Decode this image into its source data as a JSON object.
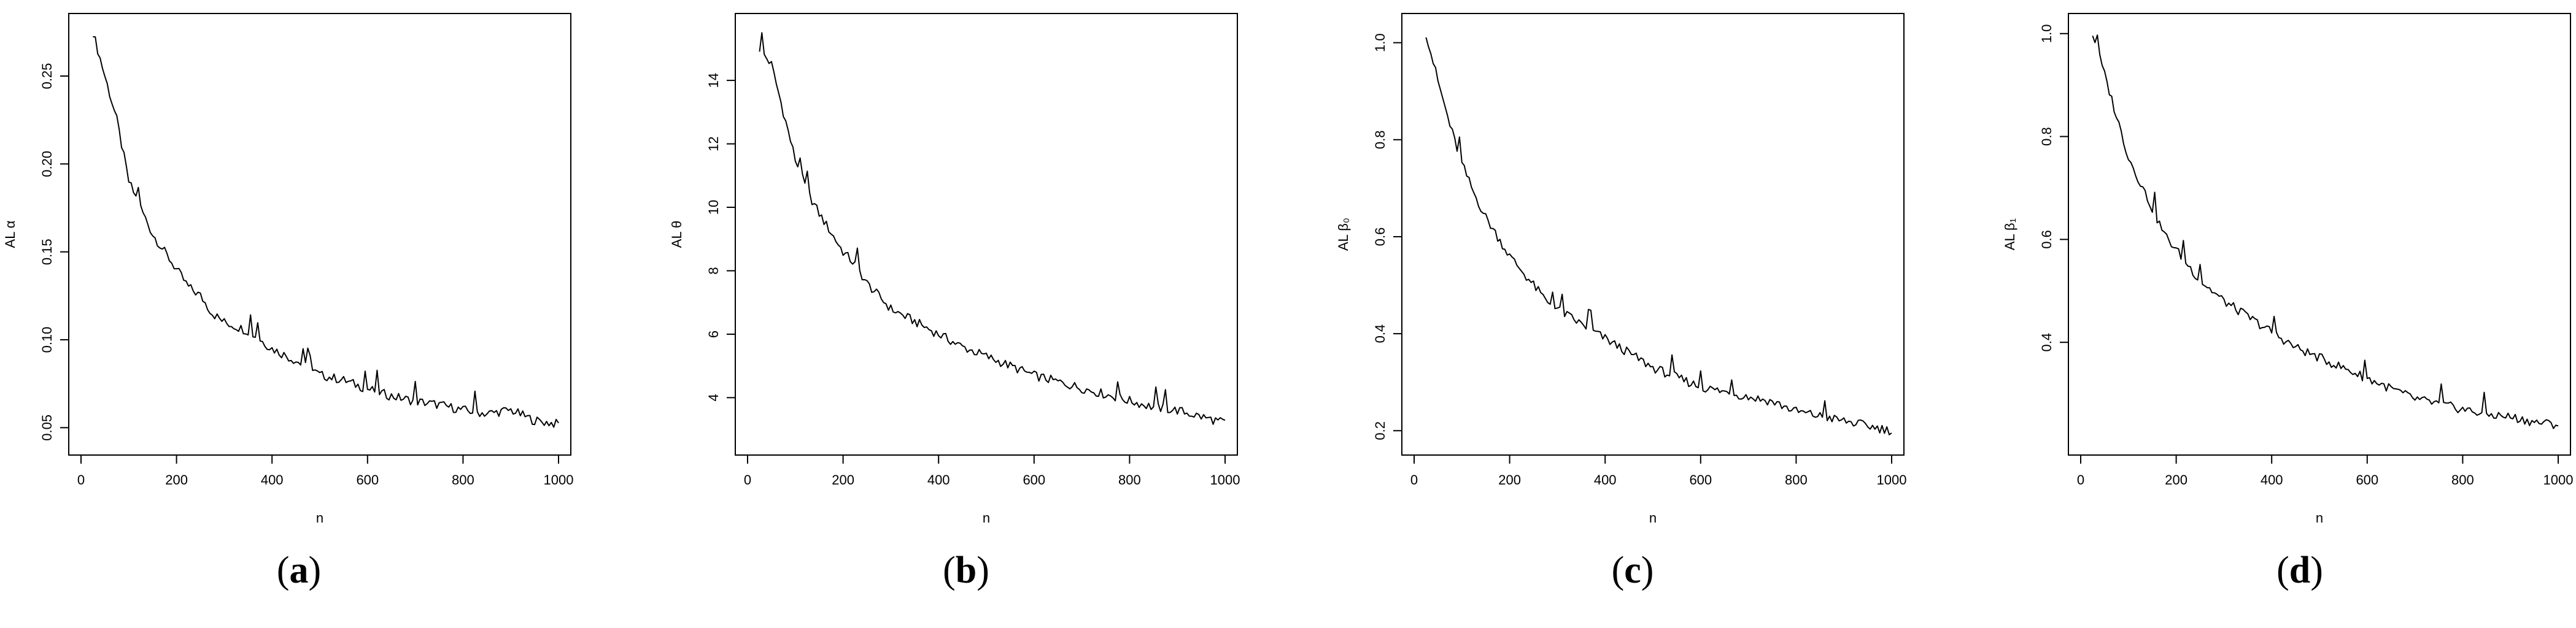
{
  "panels": [
    {
      "caption": "(a)",
      "caption_letter": "a"
    },
    {
      "caption": "(b)",
      "caption_letter": "b"
    },
    {
      "caption": "(c)",
      "caption_letter": "c"
    },
    {
      "caption": "(d)",
      "caption_letter": "d"
    }
  ],
  "chart_data": [
    {
      "type": "line",
      "title": "",
      "xlabel": "n",
      "ylabel": "AL α",
      "xlim": [
        0,
        1000
      ],
      "ylim": [
        0.04,
        0.28
      ],
      "xticks": [
        0,
        200,
        400,
        600,
        800,
        1000
      ],
      "yticks": [
        0.05,
        0.1,
        0.15,
        0.2,
        0.25
      ],
      "ytick_labels": [
        "0.05",
        "0.10",
        "0.15",
        "0.20",
        "0.25"
      ],
      "grid": false,
      "series": [
        {
          "x": [
            25,
            50,
            75,
            100,
            125,
            150,
            175,
            200,
            225,
            250,
            275,
            300,
            350,
            400,
            450,
            500,
            550,
            600,
            650,
            700,
            750,
            800,
            850,
            900,
            950,
            1000
          ],
          "y": [
            0.275,
            0.25,
            0.225,
            0.19,
            0.175,
            0.16,
            0.15,
            0.14,
            0.13,
            0.125,
            0.115,
            0.11,
            0.105,
            0.095,
            0.088,
            0.08,
            0.077,
            0.072,
            0.068,
            0.065,
            0.063,
            0.06,
            0.058,
            0.06,
            0.054,
            0.052
          ]
        }
      ]
    },
    {
      "type": "line",
      "title": "",
      "xlabel": "n",
      "ylabel": "AL θ",
      "xlim": [
        0,
        1000
      ],
      "ylim": [
        2.5,
        15.8
      ],
      "xticks": [
        0,
        200,
        400,
        600,
        800,
        1000
      ],
      "yticks": [
        4,
        6,
        8,
        10,
        12,
        14
      ],
      "ytick_labels": [
        "4",
        "6",
        "8",
        "10",
        "12",
        "14"
      ],
      "grid": false,
      "series": [
        {
          "x": [
            25,
            50,
            75,
            100,
            125,
            150,
            175,
            200,
            225,
            250,
            275,
            300,
            350,
            400,
            450,
            500,
            550,
            600,
            650,
            700,
            750,
            800,
            850,
            900,
            950,
            1000
          ],
          "y": [
            15.0,
            14.5,
            13.0,
            11.5,
            10.5,
            9.8,
            9.2,
            8.6,
            8.2,
            7.6,
            7.2,
            6.8,
            6.4,
            6.0,
            5.6,
            5.3,
            5.0,
            4.7,
            4.5,
            4.3,
            4.1,
            3.9,
            3.7,
            3.6,
            3.4,
            3.2
          ]
        }
      ]
    },
    {
      "type": "line",
      "title": "",
      "xlabel": "n",
      "ylabel": "AL β₀",
      "xlim": [
        0,
        1000
      ],
      "ylim": [
        0.17,
        1.04
      ],
      "xticks": [
        0,
        200,
        400,
        600,
        800,
        1000
      ],
      "yticks": [
        0.2,
        0.4,
        0.6,
        0.8,
        1.0
      ],
      "ytick_labels": [
        "0.2",
        "0.4",
        "0.6",
        "0.8",
        "1.0"
      ],
      "grid": false,
      "series": [
        {
          "x": [
            25,
            50,
            75,
            100,
            125,
            150,
            175,
            200,
            225,
            250,
            275,
            300,
            350,
            400,
            450,
            500,
            550,
            600,
            650,
            700,
            750,
            800,
            850,
            900,
            950,
            1000
          ],
          "y": [
            1.02,
            0.92,
            0.83,
            0.75,
            0.69,
            0.64,
            0.6,
            0.56,
            0.53,
            0.5,
            0.47,
            0.45,
            0.42,
            0.39,
            0.36,
            0.33,
            0.31,
            0.29,
            0.28,
            0.27,
            0.26,
            0.24,
            0.23,
            0.22,
            0.21,
            0.2
          ]
        }
      ]
    },
    {
      "type": "line",
      "title": "",
      "xlabel": "n",
      "ylabel": "AL β₁",
      "xlim": [
        0,
        1000
      ],
      "ylim": [
        0.2,
        1.02
      ],
      "xticks": [
        0,
        200,
        400,
        600,
        800,
        1000
      ],
      "yticks": [
        0.4,
        0.6,
        0.8,
        1.0
      ],
      "ytick_labels": [
        "0.4",
        "0.6",
        "0.8",
        "1.0"
      ],
      "grid": false,
      "series": [
        {
          "x": [
            25,
            50,
            75,
            100,
            125,
            150,
            175,
            200,
            225,
            250,
            275,
            300,
            350,
            400,
            450,
            500,
            550,
            600,
            650,
            700,
            750,
            800,
            850,
            900,
            950,
            1000
          ],
          "y": [
            1.0,
            0.92,
            0.84,
            0.76,
            0.71,
            0.66,
            0.61,
            0.58,
            0.55,
            0.52,
            0.5,
            0.48,
            0.45,
            0.42,
            0.39,
            0.37,
            0.35,
            0.33,
            0.31,
            0.29,
            0.28,
            0.27,
            0.26,
            0.255,
            0.245,
            0.24
          ]
        }
      ]
    }
  ]
}
